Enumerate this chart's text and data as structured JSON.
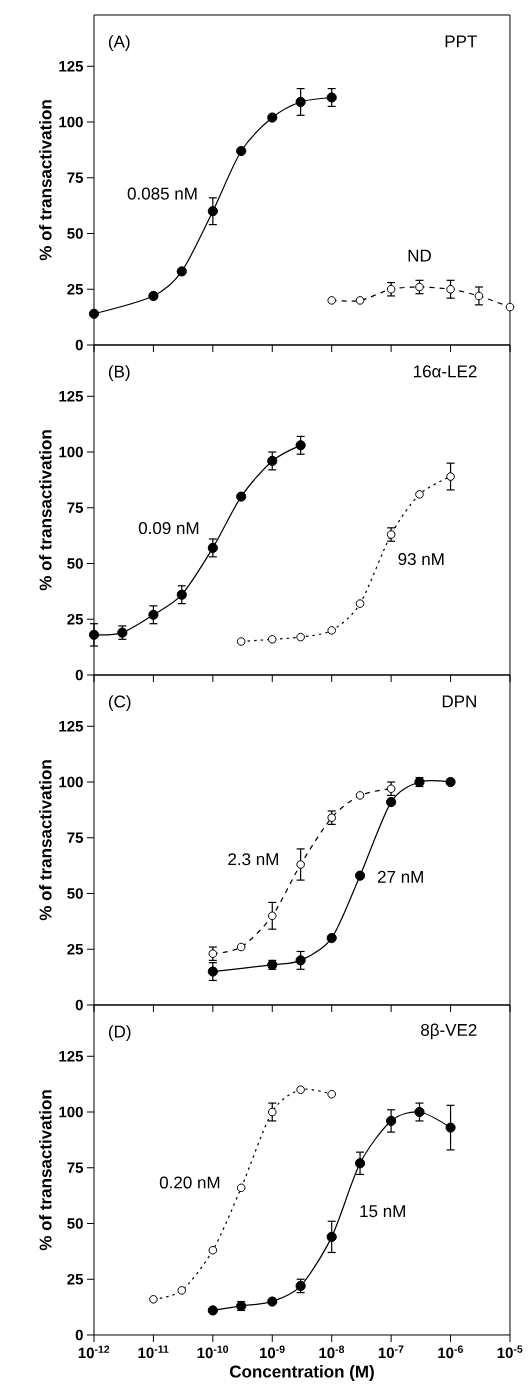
{
  "chart_data": [
    {
      "type": "line",
      "title": "(A)",
      "subtitle": "PPT",
      "ylabel": "% of transactivation",
      "log": "x",
      "marker": "circle",
      "tick_labels": "y",
      "xlim": [
        1e-12,
        1e-05
      ],
      "xticks": [
        {
          "value": 1e-12,
          "label": null
        },
        {
          "value": 1e-11,
          "label": null
        },
        {
          "value": 1e-10,
          "label": null
        },
        {
          "value": 1e-09,
          "label": null
        },
        {
          "value": 1e-08,
          "label": null
        },
        {
          "value": 1e-07,
          "label": null
        },
        {
          "value": 1e-06,
          "label": null
        },
        {
          "value": 1e-05,
          "label": null
        }
      ],
      "ylim": [
        0,
        148
      ],
      "yticks": [
        0,
        25,
        50,
        75,
        100,
        125
      ],
      "annotations": [
        "0.085 nM",
        "ND"
      ],
      "series": [
        {
          "color": "#000000",
          "line_style": "solid",
          "x": [
            1e-12,
            1e-11,
            3e-11,
            1e-10,
            3e-10,
            1e-09,
            3e-09,
            1e-08
          ],
          "values": [
            14,
            22,
            33,
            60,
            87,
            102,
            109,
            111
          ],
          "errors": [
            null,
            null,
            null,
            6,
            null,
            null,
            6,
            4
          ]
        },
        {
          "color": "#000000",
          "line_style": "dashed",
          "x": [
            1e-08,
            3e-08,
            1e-07,
            3e-07,
            1e-06,
            3e-06,
            1e-05
          ],
          "values": [
            20,
            20,
            25,
            26,
            25,
            22,
            17
          ],
          "errors": [
            null,
            null,
            3,
            3,
            4,
            4,
            null
          ]
        }
      ]
    },
    {
      "type": "line",
      "title": "(B)",
      "subtitle": "16α-LE2",
      "ylabel": "% of transactivation",
      "log": "x",
      "marker": "circle",
      "tick_labels": "y",
      "xlim": [
        1e-12,
        1e-05
      ],
      "xticks": [
        {
          "value": 1e-12,
          "label": null
        },
        {
          "value": 1e-11,
          "label": null
        },
        {
          "value": 1e-10,
          "label": null
        },
        {
          "value": 1e-09,
          "label": null
        },
        {
          "value": 1e-08,
          "label": null
        },
        {
          "value": 1e-07,
          "label": null
        },
        {
          "value": 1e-06,
          "label": null
        },
        {
          "value": 1e-05,
          "label": null
        }
      ],
      "ylim": [
        0,
        148
      ],
      "yticks": [
        0,
        25,
        50,
        75,
        100,
        125
      ],
      "annotations": [
        "0.09 nM",
        "93 nM"
      ],
      "series": [
        {
          "color": "#000000",
          "line_style": "solid",
          "x": [
            1e-12,
            3e-12,
            1e-11,
            3e-11,
            1e-10,
            3e-10,
            1e-09,
            3e-09
          ],
          "values": [
            18,
            19,
            27,
            36,
            57,
            80,
            96,
            103
          ],
          "errors": [
            5,
            3,
            4,
            4,
            4,
            null,
            4,
            4
          ]
        },
        {
          "color": "#000000",
          "line_style": "dotted",
          "x": [
            3e-10,
            1e-09,
            3e-09,
            1e-08,
            3e-08,
            1e-07,
            3e-07,
            1e-06
          ],
          "values": [
            15,
            16,
            17,
            20,
            32,
            63,
            81,
            89
          ],
          "errors": [
            null,
            null,
            null,
            null,
            null,
            3,
            null,
            6
          ]
        }
      ]
    },
    {
      "type": "line",
      "title": "(C)",
      "subtitle": "DPN",
      "ylabel": "% of transactivation",
      "log": "x",
      "marker": "circle",
      "tick_labels": "y",
      "xlim": [
        1e-12,
        1e-05
      ],
      "xticks": [
        {
          "value": 1e-12,
          "label": null
        },
        {
          "value": 1e-11,
          "label": null
        },
        {
          "value": 1e-10,
          "label": null
        },
        {
          "value": 1e-09,
          "label": null
        },
        {
          "value": 1e-08,
          "label": null
        },
        {
          "value": 1e-07,
          "label": null
        },
        {
          "value": 1e-06,
          "label": null
        },
        {
          "value": 1e-05,
          "label": null
        }
      ],
      "ylim": [
        0,
        148
      ],
      "yticks": [
        0,
        25,
        50,
        75,
        100,
        125
      ],
      "annotations": [
        "2.3 nM",
        "27 nM"
      ],
      "series": [
        {
          "color": "#000000",
          "line_style": "dashed",
          "x": [
            1e-10,
            3e-10,
            1e-09,
            3e-09,
            1e-08,
            3e-08,
            1e-07
          ],
          "values": [
            23,
            26,
            40,
            63,
            84,
            94,
            97
          ],
          "errors": [
            3,
            null,
            6,
            7,
            3,
            null,
            3
          ]
        },
        {
          "color": "#000000",
          "line_style": "solid",
          "x": [
            1e-10,
            1e-09,
            3e-09,
            1e-08,
            3e-08,
            1e-07,
            3e-07,
            1e-06
          ],
          "values": [
            15,
            18,
            20,
            30,
            58,
            91,
            100,
            100
          ],
          "errors": [
            4,
            2,
            4,
            null,
            null,
            null,
            2,
            null
          ]
        }
      ]
    },
    {
      "type": "line",
      "title": "(D)",
      "subtitle": "8β-VE2",
      "ylabel": "% of transactivation",
      "xlabel": "Concentration (M)",
      "log": "x",
      "marker": "circle",
      "xlim": [
        1e-12,
        1e-05
      ],
      "xticks": [
        {
          "value": 1e-12,
          "label": "10$^{-12}$"
        },
        {
          "value": 1e-11,
          "label": "10$^{-11}$"
        },
        {
          "value": 1e-10,
          "label": "10$^{-10}$"
        },
        {
          "value": 1e-09,
          "label": "10$^{-9}$"
        },
        {
          "value": 1e-08,
          "label": "10$^{-8}$"
        },
        {
          "value": 1e-07,
          "label": "10$^{-7}$"
        },
        {
          "value": 1e-06,
          "label": "10$^{-6}$"
        },
        {
          "value": 1e-05,
          "label": "10$^{-5}$"
        }
      ],
      "ylim": [
        0,
        148
      ],
      "yticks": [
        0,
        25,
        50,
        75,
        100,
        125
      ],
      "annotations": [
        "0.20 nM",
        "15 nM"
      ],
      "series": [
        {
          "color": "#000000",
          "line_style": "dotted",
          "x": [
            1e-11,
            3e-11,
            1e-10,
            3e-10,
            1e-09,
            3e-09,
            1e-08
          ],
          "values": [
            16,
            20,
            38,
            66,
            100,
            110,
            108
          ],
          "errors": [
            null,
            null,
            null,
            null,
            4,
            null,
            null
          ]
        },
        {
          "color": "#000000",
          "line_style": "solid",
          "x": [
            1e-10,
            3e-10,
            1e-09,
            3e-09,
            1e-08,
            3e-08,
            1e-07,
            3e-07,
            1e-06
          ],
          "values": [
            11,
            13,
            15,
            22,
            44,
            77,
            96,
            100,
            93
          ],
          "errors": [
            null,
            2,
            null,
            3,
            7,
            5,
            5,
            4,
            10
          ]
        }
      ]
    }
  ]
}
